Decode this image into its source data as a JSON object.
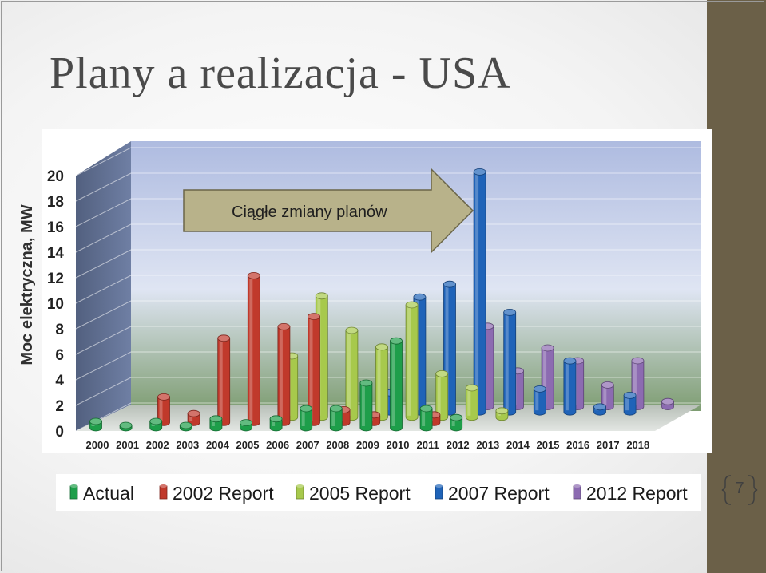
{
  "slide": {
    "title": "Plany a realizacja - USA",
    "page_number": "7",
    "side_bar_color": "#6b6048"
  },
  "callout": {
    "text": "Ciągłe zmiany planów"
  },
  "chart_data": {
    "type": "bar",
    "title": "",
    "xlabel": "",
    "ylabel": "Moc elektryczna, MW",
    "ylim": [
      0,
      20
    ],
    "yticks": [
      0,
      2,
      4,
      6,
      8,
      10,
      12,
      14,
      16,
      18,
      20
    ],
    "categories": [
      "2000",
      "2001",
      "2002",
      "2003",
      "2004",
      "2005",
      "2006",
      "2007",
      "2008",
      "2009",
      "2010",
      "2011",
      "2012",
      "2013",
      "2014",
      "2015",
      "2016",
      "2017",
      "2018"
    ],
    "grid": true,
    "legend_position": "bottom",
    "series": [
      {
        "name": "Actual",
        "color": "#1e9e4a",
        "values": [
          0.5,
          0.1,
          0.5,
          0.1,
          0.7,
          0.4,
          0.7,
          1.5,
          1.5,
          3.5,
          6.8,
          1.5,
          0.8,
          null,
          null,
          null,
          null,
          null,
          null
        ]
      },
      {
        "name": "2002 Report",
        "color": "#c0392b",
        "values": [
          null,
          null,
          2.0,
          0.7,
          6.6,
          11.5,
          7.5,
          8.3,
          1.0,
          0.6,
          null,
          0.6,
          null,
          null,
          null,
          null,
          null,
          null,
          null
        ]
      },
      {
        "name": "2005 Report",
        "color": "#a7c94c",
        "values": [
          null,
          null,
          null,
          null,
          null,
          null,
          4.8,
          9.5,
          6.8,
          5.5,
          8.8,
          3.4,
          2.3,
          0.5,
          null,
          null,
          null,
          null,
          null
        ]
      },
      {
        "name": "2007 Report",
        "color": "#1f63b8",
        "values": [
          null,
          null,
          null,
          null,
          null,
          null,
          null,
          null,
          null,
          1.5,
          9.0,
          10.0,
          18.8,
          7.8,
          1.8,
          4.0,
          0.4,
          1.3,
          null
        ]
      },
      {
        "name": "2012 Report",
        "color": "#8c6bb1",
        "values": [
          null,
          null,
          null,
          null,
          null,
          null,
          null,
          null,
          null,
          null,
          null,
          null,
          6.3,
          2.8,
          4.6,
          3.6,
          1.7,
          3.6,
          0.4
        ]
      }
    ]
  }
}
